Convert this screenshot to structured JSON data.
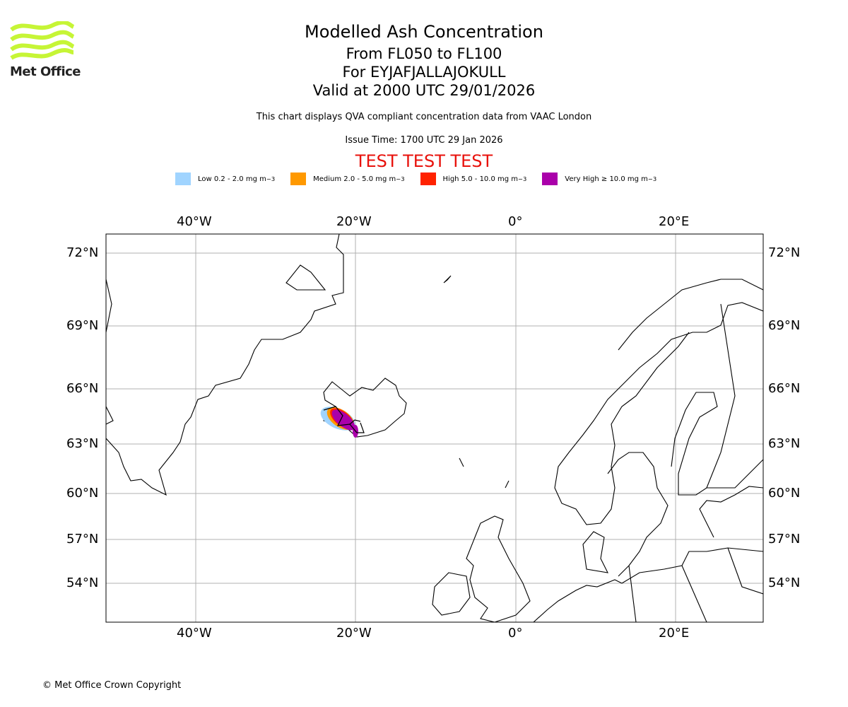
{
  "logo": {
    "text": "Met Office",
    "color": "#c6f536"
  },
  "title": {
    "main": "Modelled Ash Concentration",
    "levels": "From FL050 to FL100",
    "volcano": "For EYJAFJALLAJOKULL",
    "valid": "Valid at 2000 UTC 29/01/2026"
  },
  "subtitle": "This chart displays QVA compliant concentration data from VAAC London",
  "issue_time": "Issue Time: 1700 UTC 29 Jan 2026",
  "test_banner": "TEST TEST TEST",
  "legend": [
    {
      "label": "Low 0.2 - 2.0 mg m",
      "unit_exp": "−3",
      "color": "#a0d4ff"
    },
    {
      "label": "Medium 2.0 - 5.0 mg m",
      "unit_exp": "−3",
      "color": "#ff9900"
    },
    {
      "label": "High 5.0 - 10.0 mg m",
      "unit_exp": "−3",
      "color": "#ff2200"
    },
    {
      "label": "Very High  ≥  10.0 mg m",
      "unit_exp": "−3",
      "color": "#aa00aa"
    }
  ],
  "map": {
    "lon_ticks": [
      "40°W",
      "20°W",
      "0°",
      "20°E"
    ],
    "lat_ticks": [
      "72°N",
      "69°N",
      "66°N",
      "63°N",
      "60°N",
      "57°N",
      "54°N"
    ]
  },
  "copyright": "© Met Office Crown Copyright"
}
